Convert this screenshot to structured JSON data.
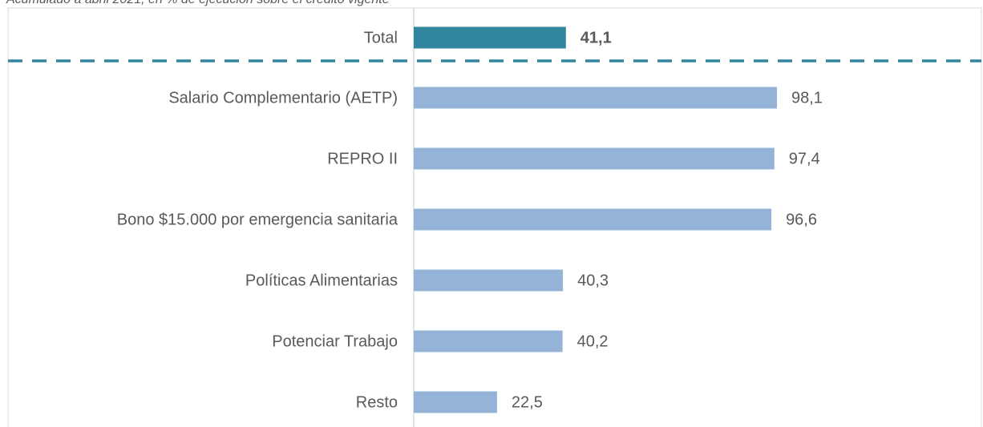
{
  "chart_data": {
    "type": "bar",
    "orientation": "horizontal",
    "subtitle": "Acumulado a abril 2021, en % de ejecución sobre el crédito vigente",
    "categories": [
      "Total",
      "Salario Complementario (AETP)",
      "REPRO II",
      "Bono $15.000 por emergencia sanitaria",
      "Políticas Alimentarias",
      "Potenciar Trabajo",
      "Resto"
    ],
    "values": [
      41.1,
      98.1,
      97.4,
      96.6,
      40.3,
      40.2,
      22.5
    ],
    "value_labels": [
      "41,1",
      "98,1",
      "97,4",
      "96,6",
      "40,3",
      "40,2",
      "22,5"
    ],
    "colors": [
      "#31859c",
      "#95b3d7",
      "#95b3d7",
      "#95b3d7",
      "#95b3d7",
      "#95b3d7",
      "#95b3d7"
    ],
    "grid": false
  }
}
